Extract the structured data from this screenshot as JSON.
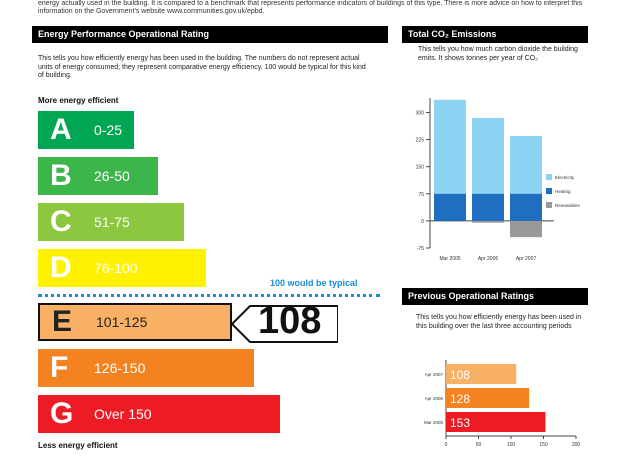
{
  "top_note": "energy actually used in the building. It is compared to a benchmark that represents performance indicators of buildings of this type. There is more advice on how to interpret this information on the Government's website www.communities.gov.uk/epbd.",
  "dec": {
    "header": "Energy Performance Operational Rating",
    "description": "This tells you how efficiently energy has been used in the building. The numbers do not represent actual units of energy consumed; they represent comparative energy efficiency. 100 would be typical for this kind of building.",
    "more_label": "More energy efficient",
    "less_label": "Less energy efficient",
    "typical_label": "100 would be typical",
    "bands": [
      {
        "letter": "A",
        "range": "0-25",
        "color": "#00a651"
      },
      {
        "letter": "B",
        "range": "26-50",
        "color": "#3cb54a"
      },
      {
        "letter": "C",
        "range": "51-75",
        "color": "#8dc63f"
      },
      {
        "letter": "D",
        "range": "76-100",
        "color": "#fff200"
      },
      {
        "letter": "E",
        "range": "101-125",
        "color": "#f7b064"
      },
      {
        "letter": "F",
        "range": "126-150",
        "color": "#f58220"
      },
      {
        "letter": "G",
        "range": "Over 150",
        "color": "#ed1c24"
      }
    ],
    "rating": "108"
  },
  "co2": {
    "header": "Total CO₂ Emissions",
    "description": "This tells you how much carbon dioxide the building emits. It shows tonnes per year of CO₂",
    "legend": [
      {
        "name": "Electricity",
        "color": "#8fd3f4"
      },
      {
        "name": "Heating",
        "color": "#1f6fc1"
      },
      {
        "name": "Renewables",
        "color": "#999999"
      }
    ]
  },
  "prev": {
    "header": "Previous Operational Ratings",
    "description": "This tells you how efficiently energy has been used in this building over the last three accounting periods"
  },
  "chart_data": [
    {
      "type": "bar",
      "stacked": true,
      "categories": [
        "Mar 2005",
        "Apr 2006",
        "Apr 2007"
      ],
      "series": [
        {
          "name": "Electricity",
          "values": [
            260,
            210,
            160
          ]
        },
        {
          "name": "Heating",
          "values": [
            75,
            75,
            75
          ]
        },
        {
          "name": "Renewables",
          "values": [
            0,
            -5,
            -45
          ]
        }
      ],
      "yticks": [
        "-75",
        "0",
        "75",
        "150",
        "225",
        "300"
      ],
      "ylim": [
        -75,
        340
      ]
    },
    {
      "type": "bar",
      "orientation": "horizontal",
      "categories": [
        "Apr 2007",
        "Apr 2006",
        "Mar 2005"
      ],
      "values": [
        108,
        128,
        153
      ],
      "colors": [
        "#f7b064",
        "#f58220",
        "#ed1c24"
      ],
      "xticks": [
        "0",
        "50",
        "100",
        "150",
        "200"
      ],
      "xlim": [
        0,
        200
      ]
    }
  ]
}
